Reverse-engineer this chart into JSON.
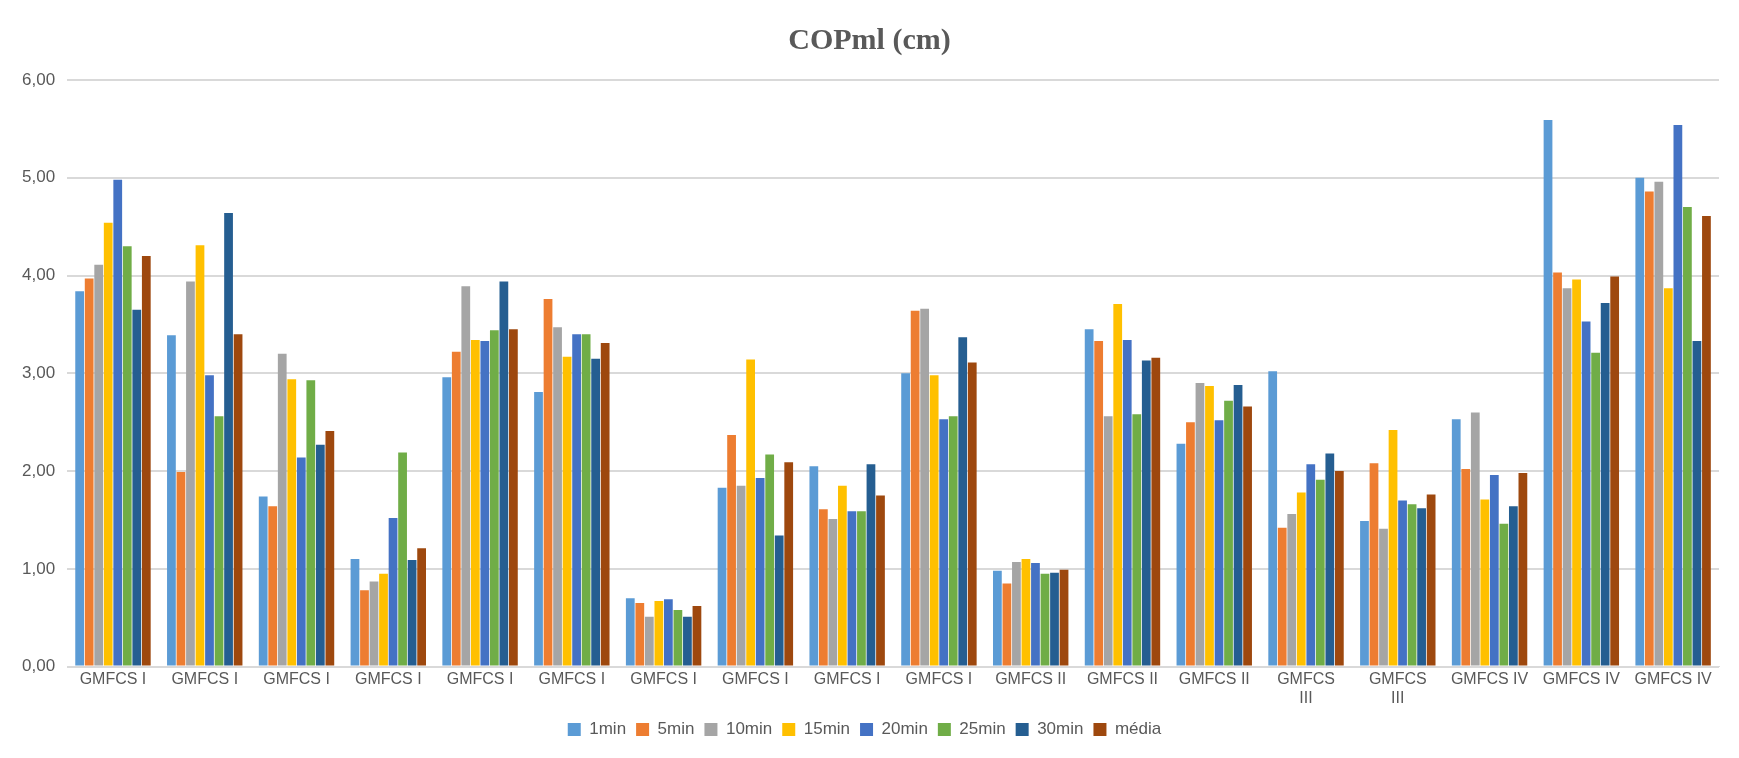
{
  "chart_data": {
    "type": "bar",
    "title": "COPml (cm)",
    "categories": [
      "GMFCS I",
      "GMFCS I",
      "GMFCS I",
      "GMFCS I",
      "GMFCS I",
      "GMFCS I",
      "GMFCS I",
      "GMFCS I",
      "GMFCS I",
      "GMFCS I",
      "GMFCS II",
      "GMFCS II",
      "GMFCS II",
      "GMFCS III",
      "GMFCS III",
      "GMFCS IV",
      "GMFCS IV",
      "GMFCS IV"
    ],
    "series": [
      {
        "name": "1min",
        "color": "#5b9bd5",
        "values": [
          3.84,
          3.39,
          1.74,
          1.1,
          2.96,
          2.81,
          0.7,
          1.83,
          2.05,
          3.0,
          0.98,
          3.45,
          2.28,
          3.02,
          1.49,
          2.53,
          5.59,
          5.0
        ]
      },
      {
        "name": "5min",
        "color": "#ed7d31",
        "values": [
          3.97,
          1.99,
          1.64,
          0.78,
          3.22,
          3.76,
          0.65,
          2.37,
          1.61,
          3.64,
          0.85,
          3.33,
          2.5,
          1.42,
          2.08,
          2.02,
          4.03,
          4.86
        ]
      },
      {
        "name": "10min",
        "color": "#a5a5a5",
        "values": [
          4.11,
          3.94,
          3.2,
          0.87,
          3.89,
          3.47,
          0.51,
          1.85,
          1.51,
          3.66,
          1.07,
          2.56,
          2.9,
          1.56,
          1.41,
          2.6,
          3.87,
          4.96
        ]
      },
      {
        "name": "15min",
        "color": "#ffc000",
        "values": [
          4.54,
          4.31,
          2.94,
          0.95,
          3.34,
          3.17,
          0.67,
          3.14,
          1.85,
          2.98,
          1.1,
          3.71,
          2.87,
          1.78,
          2.42,
          1.71,
          3.96,
          3.87
        ]
      },
      {
        "name": "20min",
        "color": "#4472c4",
        "values": [
          4.98,
          2.98,
          2.14,
          1.52,
          3.33,
          3.4,
          0.69,
          1.93,
          1.59,
          2.53,
          1.06,
          3.34,
          2.52,
          2.07,
          1.7,
          1.96,
          3.53,
          5.54
        ]
      },
      {
        "name": "25min",
        "color": "#70ad47",
        "values": [
          4.3,
          2.56,
          2.93,
          2.19,
          3.44,
          3.4,
          0.58,
          2.17,
          1.59,
          2.56,
          0.95,
          2.58,
          2.72,
          1.91,
          1.66,
          1.46,
          3.21,
          4.7
        ]
      },
      {
        "name": "30min",
        "color": "#255e91",
        "values": [
          3.65,
          4.64,
          2.27,
          1.09,
          3.94,
          3.15,
          0.51,
          1.34,
          2.07,
          3.37,
          0.96,
          3.13,
          2.88,
          2.18,
          1.62,
          1.64,
          3.72,
          3.33
        ]
      },
      {
        "name": "média",
        "color": "#9e480e",
        "values": [
          4.2,
          3.4,
          2.41,
          1.21,
          3.45,
          3.31,
          0.62,
          2.09,
          1.75,
          3.11,
          0.99,
          3.16,
          2.66,
          2.0,
          1.76,
          1.98,
          3.99,
          4.61
        ]
      }
    ],
    "ylim": [
      0,
      6
    ],
    "yticks": [
      {
        "value": 0,
        "label": "0,00"
      },
      {
        "value": 1,
        "label": "1,00"
      },
      {
        "value": 2,
        "label": "2,00"
      },
      {
        "value": 3,
        "label": "3,00"
      },
      {
        "value": 4,
        "label": "4,00"
      },
      {
        "value": 5,
        "label": "5,00"
      },
      {
        "value": 6,
        "label": "6,00"
      }
    ],
    "grid": "y",
    "legend": "bottom"
  }
}
